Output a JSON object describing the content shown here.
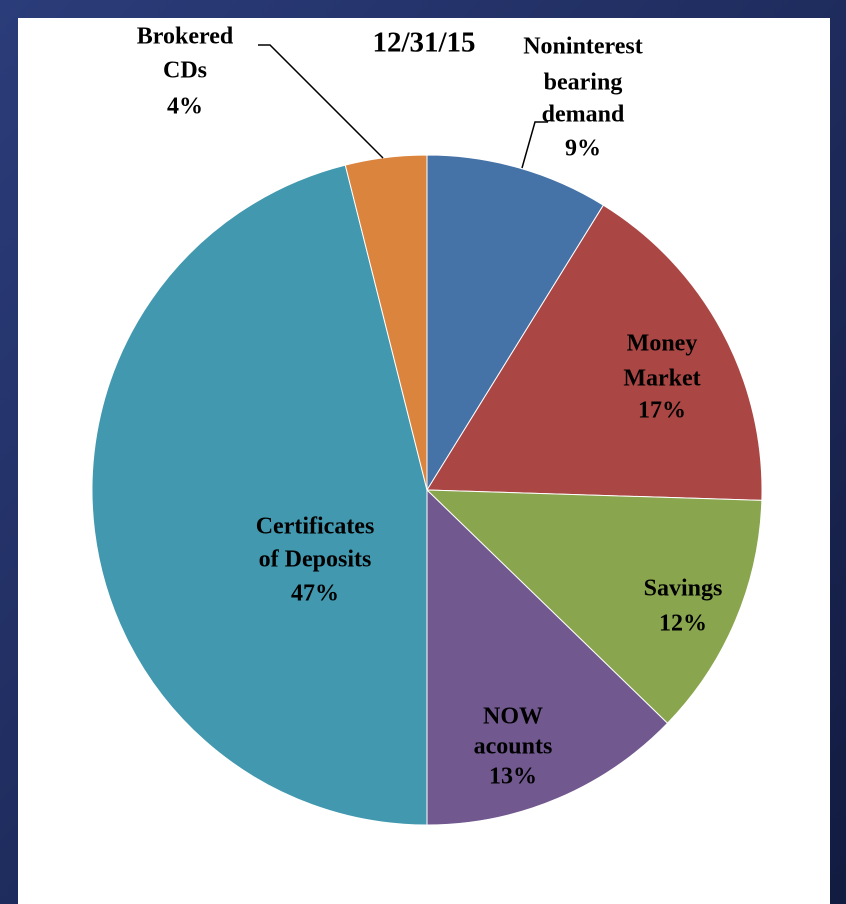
{
  "chart_data": {
    "type": "pie",
    "title": "12/31/15",
    "categories": [
      [
        "Noninterest",
        "bearing",
        "demand"
      ],
      [
        "Money",
        "Market"
      ],
      [
        "Savings"
      ],
      [
        "NOW",
        "acounts"
      ],
      [
        "Certificates",
        "of Deposits"
      ],
      [
        "Brokered",
        "CDs"
      ]
    ],
    "values": [
      9,
      17,
      12,
      13,
      47,
      4
    ],
    "value_labels": [
      "9%",
      "17%",
      "12%",
      "13%",
      "47%",
      "4%"
    ],
    "colors": [
      "#4572a7",
      "#aa4643",
      "#89a54e",
      "#71588f",
      "#4198af",
      "#db843d"
    ]
  }
}
